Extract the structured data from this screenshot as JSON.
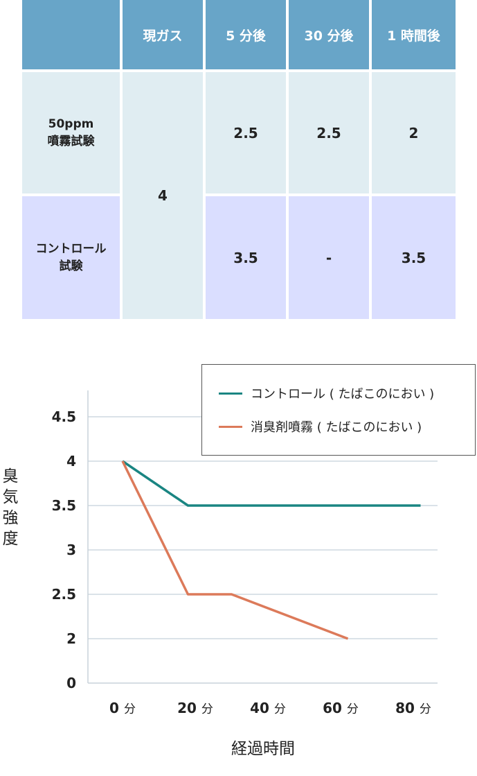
{
  "table": {
    "headers": [
      "",
      "現ガス",
      "5 分後",
      "30 分後",
      "1 時間後"
    ],
    "rows": [
      {
        "label": "50ppm\n噴霧試験",
        "values": [
          "2.5",
          "2.5",
          "2"
        ]
      },
      {
        "label": "コントロール\n試験",
        "values": [
          "3.5",
          "-",
          "3.5"
        ]
      }
    ],
    "shared_value": "4",
    "colors": {
      "header": "#68a5c8",
      "row1": "#e0edf2",
      "row2": "#dadeff"
    }
  },
  "chart_data": {
    "type": "line",
    "xlabel": "経過時間",
    "ylabel": "臭気強度",
    "x_ticks": [
      {
        "value": 0,
        "number": "0",
        "unit": "分"
      },
      {
        "value": 20,
        "number": "20",
        "unit": "分"
      },
      {
        "value": 40,
        "number": "40",
        "unit": "分"
      },
      {
        "value": 60,
        "number": "60",
        "unit": "分"
      },
      {
        "value": 80,
        "number": "80",
        "unit": "分"
      }
    ],
    "y_ticks": [
      "4.5",
      "4",
      "3.5",
      "3",
      "2.5",
      "2",
      "0"
    ],
    "grid": true,
    "legend_position": "top-right",
    "series": [
      {
        "name": "コントロール ( たばこのにおい )",
        "color": "#1a8582",
        "points": [
          [
            0,
            4
          ],
          [
            18,
            3.5
          ],
          [
            82,
            3.5
          ]
        ]
      },
      {
        "name": "消臭剤噴霧 ( たばこのにおい )",
        "color": "#dc7a5a",
        "points": [
          [
            0,
            4
          ],
          [
            18,
            2.5
          ],
          [
            30,
            2.5
          ],
          [
            62,
            2
          ]
        ]
      }
    ]
  }
}
